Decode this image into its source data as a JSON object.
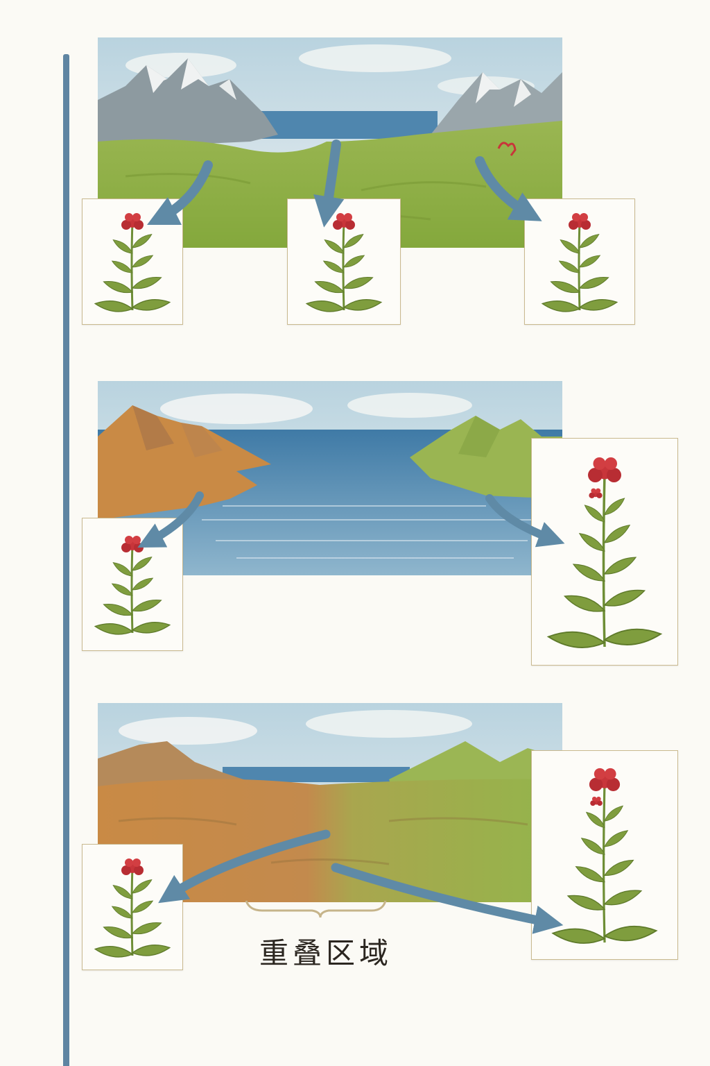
{
  "caption": "重叠区域",
  "colors": {
    "arrow": "#5f8aa6",
    "timeline": "#5f85a2",
    "water": "#5a8db4",
    "grass": "#95b54b",
    "arid": "#c98a45",
    "flower": "#c8353a",
    "leaf": "#7f9d3e"
  },
  "icons": [
    "flower-icon",
    "arrow-icon",
    "mountain-icon"
  ]
}
